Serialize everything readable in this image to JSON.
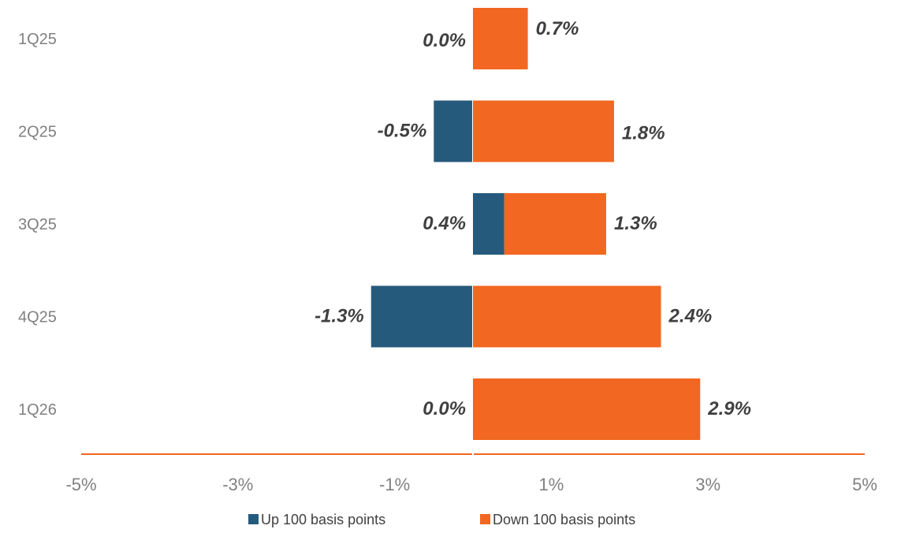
{
  "chart_data": {
    "type": "bar",
    "orientation": "horizontal",
    "stacked": true,
    "categories": [
      "1Q25",
      "2Q25",
      "3Q25",
      "4Q25",
      "1Q26"
    ],
    "series": [
      {
        "name": "Up 100 basis points",
        "color": "#265A7D",
        "values": [
          0.0,
          -0.5,
          0.4,
          -1.3,
          0.0
        ],
        "labels": [
          "0.0%",
          "-0.5%",
          "0.4%",
          "-1.3%",
          "0.0%"
        ]
      },
      {
        "name": "Down 100 basis points",
        "color": "#F26722",
        "values": [
          0.7,
          1.8,
          1.3,
          2.4,
          2.9
        ],
        "labels": [
          "0.7%",
          "1.8%",
          "1.3%",
          "2.4%",
          "2.9%"
        ]
      }
    ],
    "xlim": [
      -5,
      5
    ],
    "xticks": [
      -5,
      -3,
      -1,
      1,
      3,
      5
    ],
    "xtick_labels": [
      "-5%",
      "-3%",
      "-1%",
      "1%",
      "3%",
      "5%"
    ],
    "axis_color": "#F26722",
    "grid": false,
    "legend": "bottom"
  }
}
